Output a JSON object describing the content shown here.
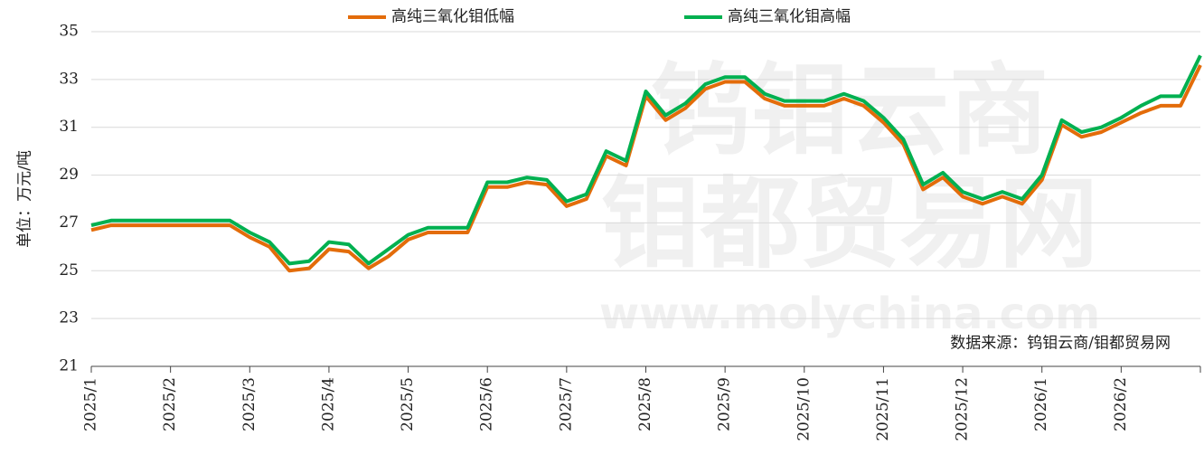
{
  "chart_data": {
    "type": "line",
    "y_label": "单位：万元/吨",
    "source": "数据来源：钨钼云商/钼都贸易网",
    "watermark": [
      "钨钼云商",
      "钼都贸易网",
      "www.molychina.com"
    ],
    "categories": [
      "2025/1",
      null,
      null,
      null,
      "2025/2",
      null,
      null,
      null,
      "2025/3",
      null,
      null,
      null,
      "2025/4",
      null,
      null,
      null,
      "2025/5",
      null,
      null,
      null,
      "2025/6",
      null,
      null,
      null,
      "2025/7",
      null,
      null,
      null,
      "2025/8",
      null,
      null,
      null,
      "2025/9",
      null,
      null,
      null,
      "2025/10",
      null,
      null,
      null,
      "2025/11",
      null,
      null,
      null,
      "2025/12",
      null,
      null,
      null,
      "2026/1",
      null,
      null,
      null,
      "2026/2",
      null,
      null,
      null,
      null
    ],
    "series": [
      {
        "name": "高纯三氧化钼低幅",
        "color": "#e36c0a",
        "values": [
          26.7,
          26.9,
          26.9,
          26.9,
          26.9,
          26.9,
          26.9,
          26.9,
          26.4,
          26.0,
          25.0,
          25.1,
          25.9,
          25.8,
          25.1,
          25.6,
          26.3,
          26.6,
          26.6,
          26.6,
          28.5,
          28.5,
          28.7,
          28.6,
          27.7,
          28.0,
          29.8,
          29.4,
          32.3,
          31.3,
          31.8,
          32.6,
          32.9,
          32.9,
          32.2,
          31.9,
          31.9,
          31.9,
          32.2,
          31.9,
          31.2,
          30.3,
          28.4,
          28.9,
          28.1,
          27.8,
          28.1,
          27.8,
          28.8,
          31.1,
          30.6,
          30.8,
          31.2,
          31.6,
          31.9,
          31.9,
          33.6
        ]
      },
      {
        "name": "高纯三氧化钼高幅",
        "color": "#00b050",
        "values": [
          26.9,
          27.1,
          27.1,
          27.1,
          27.1,
          27.1,
          27.1,
          27.1,
          26.6,
          26.2,
          25.3,
          25.4,
          26.2,
          26.1,
          25.3,
          25.9,
          26.5,
          26.8,
          26.8,
          26.8,
          28.7,
          28.7,
          28.9,
          28.8,
          27.9,
          28.2,
          30.0,
          29.6,
          32.5,
          31.5,
          32.0,
          32.8,
          33.1,
          33.1,
          32.4,
          32.1,
          32.1,
          32.1,
          32.4,
          32.1,
          31.4,
          30.5,
          28.6,
          29.1,
          28.3,
          28.0,
          28.3,
          28.0,
          29.0,
          31.3,
          30.8,
          31.0,
          31.4,
          31.9,
          32.3,
          32.3,
          34.0
        ]
      }
    ],
    "ylim": [
      21,
      35
    ],
    "yticks": [
      21,
      23,
      25,
      27,
      29,
      31,
      33,
      35
    ],
    "grid": true,
    "legend": "top"
  }
}
